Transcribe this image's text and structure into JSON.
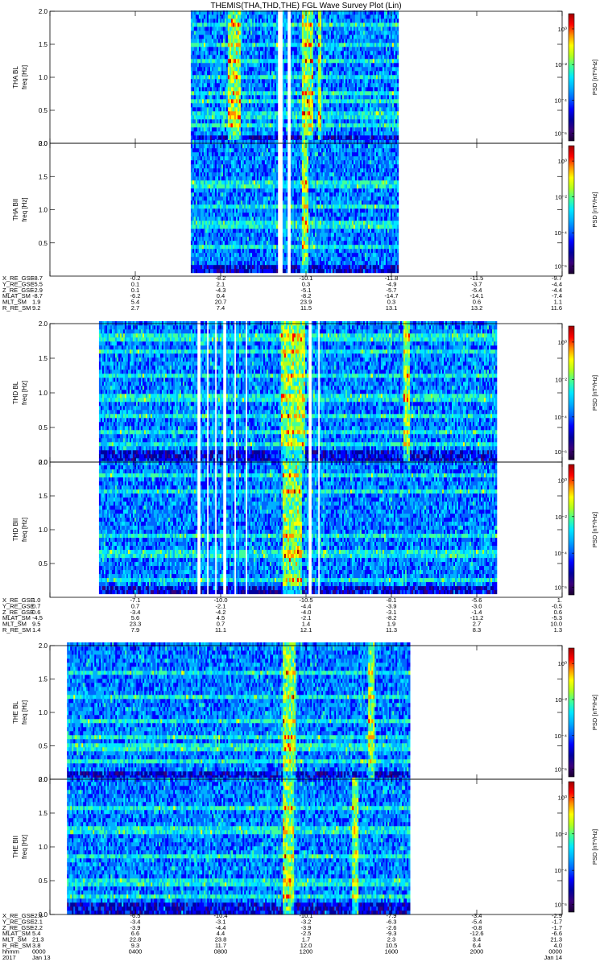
{
  "title": "THEMIS(THA,THD,THE) FGL Wave Survey Plot (Lin)",
  "colors": {
    "palette": [
      "#1a0030",
      "#3a007a",
      "#00009e",
      "#0000ff",
      "#0066ff",
      "#00b0ff",
      "#00e8ff",
      "#40ff9a",
      "#b0ff20",
      "#ffff00",
      "#ff9000",
      "#ff0000",
      "#a00000"
    ],
    "background": "#ffffff"
  },
  "colorbar": {
    "label": "PSD [nT²/Hz]",
    "ticks": [
      "10⁰",
      "10⁻²",
      "10⁻⁴",
      "10⁻⁶"
    ],
    "tick_levels": [
      0.88,
      0.6,
      0.32,
      0.06
    ]
  },
  "ephemeris_groups": [
    {
      "labels": [
        "X_RE_GSE",
        "Y_RE_GSE",
        "Z_RE_GSE",
        "MLAT_SM",
        "MLT_SM",
        "R_RE_SM"
      ],
      "columns": [
        [
          "-8.7",
          "-5.5",
          "-2.9",
          "-8.7",
          "1.9",
          "9.2"
        ],
        [
          "-0.2",
          "0.1",
          "0.1",
          "-6.2",
          "5.4",
          "2.7"
        ],
        [
          "-8.2",
          "2.1",
          "-4.3",
          "0.4",
          "20.7",
          "7.4"
        ],
        [
          "-10.1",
          "0.3",
          "-5.1",
          "-8.2",
          "23.9",
          "11.5"
        ],
        [
          "-11.8",
          "-4.9",
          "-5.7",
          "-14.7",
          "0.3",
          "13.1"
        ],
        [
          "-11.5",
          "-3.7",
          "-5.4",
          "-14.1",
          "0.6",
          "13.2"
        ],
        [
          "-9.7",
          "-4.4",
          "-4.4",
          "-7.4",
          "1.1",
          "11.6"
        ]
      ]
    },
    {
      "labels": [
        "X_RE_GSE",
        "Y_RE_GSE",
        "Z_RE_GSE",
        "MLAT_SM",
        "MLT_SM",
        "R_RE_SM"
      ],
      "columns": [
        [
          "1.0",
          "0.7",
          "0.6",
          "-4.5",
          "9.5",
          "1.4"
        ],
        [
          "-7.1",
          "0.7",
          "-3.4",
          "5.6",
          "23.3",
          "7.9"
        ],
        [
          "-10.0",
          "-2.1",
          "-4.2",
          "4.5",
          "0.7",
          "11.1"
        ],
        [
          "-10.5",
          "-4.4",
          "-4.0",
          "-2.1",
          "1.4",
          "12.1"
        ],
        [
          "-8.1",
          "-3.9",
          "-3.1",
          "-8.2",
          "1.9",
          "11.3"
        ],
        [
          "-5.6",
          "-3.0",
          "-1.4",
          "-11.2",
          "2.7",
          "8.3"
        ],
        [
          "1.",
          "-0.5",
          "0.6",
          "-5.3",
          "10.0",
          "1.3"
        ]
      ]
    },
    {
      "labels": [
        "X_RE_GSE",
        "Y_RE_GSE",
        "Z_RE_GSE",
        "MLAT_SM",
        "MLT_SM",
        "R_RE_SM",
        "hhmm",
        "2017"
      ],
      "columns": [
        [
          "-2.8",
          "-2.1",
          "-2.2",
          "5.4",
          "21.3",
          "3.8",
          "0000",
          "Jan 13"
        ],
        [
          "-6.5",
          "-3.4",
          "-3.9",
          "6.6",
          "22.8",
          "9.3",
          "0400",
          ""
        ],
        [
          "-10.4",
          "-3.1",
          "-4.4",
          "4.4",
          "23.8",
          "11.7",
          "0800",
          ""
        ],
        [
          "-10.1",
          "-3.2",
          "-3.9",
          "-2.5",
          "1.7",
          "12.0",
          "1200",
          ""
        ],
        [
          "-7.9",
          "-6.3",
          "-2.6",
          "-9.3",
          "2.3",
          "10.5",
          "1600",
          ""
        ],
        [
          "-3.4",
          "-5.4",
          "-0.8",
          "-12.6",
          "3.4",
          "6.4",
          "2000",
          ""
        ],
        [
          "-2.9",
          "-1.7",
          "-1.7",
          "-6.6",
          "21.3",
          "4.0",
          "0000",
          "Jan 14"
        ]
      ]
    }
  ],
  "chart_data": [
    {
      "type": "heatmap",
      "id": "tha-bl",
      "ylabel": "THA BL",
      "ylabel2": "freq [Hz]",
      "x_range_hours": [
        0,
        24
      ],
      "ylim": [
        0,
        2
      ],
      "yticks": [
        "0.0",
        "0.5",
        "1.0",
        "1.5",
        "2.0"
      ],
      "z_label": "PSD [nT²/Hz]",
      "data_span_hours": [
        6.6,
        16.3
      ],
      "gaps_hours": [
        [
          10.67,
          10.87
        ],
        [
          11.07,
          11.27
        ]
      ],
      "bright_bands_hz": [
        0.22,
        0.4,
        0.62,
        0.75,
        1.0,
        1.2,
        1.48,
        1.77
      ],
      "bright_times_hours": [
        [
          8.3,
          8.9
        ],
        [
          11.8,
          12.3
        ],
        [
          12.5,
          12.7
        ]
      ]
    },
    {
      "type": "heatmap",
      "id": "tha-bll",
      "ylabel": "THA BII",
      "ylabel2": "freq [Hz]",
      "x_range_hours": [
        0,
        24
      ],
      "ylim": [
        0,
        2
      ],
      "yticks": [
        "0.5",
        "1.0",
        "1.5",
        "2.0"
      ],
      "z_label": "PSD [nT²/Hz]",
      "data_span_hours": [
        6.6,
        16.3
      ],
      "gaps_hours": [
        [
          10.67,
          10.87
        ],
        [
          11.07,
          11.27
        ]
      ],
      "bright_bands_hz": [
        0.4,
        0.75,
        1.0,
        1.35
      ],
      "bright_times_hours": [
        [
          11.8,
          12.1
        ]
      ]
    },
    {
      "type": "heatmap",
      "id": "thd-bl",
      "ylabel": "THD BL",
      "ylabel2": "freq [Hz]",
      "x_range_hours": [
        0,
        24
      ],
      "ylim": [
        0,
        2
      ],
      "yticks": [
        "0.0",
        "0.5",
        "1.0",
        "1.5",
        "2.0"
      ],
      "z_label": "PSD [nT²/Hz]",
      "data_span_hours": [
        2.3,
        20.9
      ],
      "gaps_hours": [
        [
          6.9,
          7.0
        ],
        [
          7.3,
          7.4
        ],
        [
          7.7,
          7.8
        ],
        [
          8.1,
          8.2
        ],
        [
          8.6,
          8.7
        ],
        [
          9.1,
          9.2
        ],
        [
          12.1,
          12.2
        ],
        [
          12.5,
          12.6
        ]
      ],
      "bright_bands_hz": [
        0.22,
        0.4,
        0.62,
        0.9,
        1.22,
        1.55,
        1.77
      ],
      "bright_times_hours": [
        [
          10.8,
          11.9
        ],
        [
          16.5,
          16.8
        ]
      ]
    },
    {
      "type": "heatmap",
      "id": "thd-bll",
      "ylabel": "THD BII",
      "ylabel2": "freq [Hz]",
      "x_range_hours": [
        0,
        24
      ],
      "ylim": [
        0,
        2
      ],
      "yticks": [
        "0.5",
        "1.0",
        "1.5",
        "2.0"
      ],
      "z_label": "PSD [nT²/Hz]",
      "data_span_hours": [
        2.3,
        20.9
      ],
      "gaps_hours": [
        [
          6.9,
          7.0
        ],
        [
          7.3,
          7.4
        ],
        [
          7.7,
          7.8
        ],
        [
          8.1,
          8.2
        ],
        [
          8.6,
          8.7
        ],
        [
          9.1,
          9.2
        ],
        [
          12.1,
          12.2
        ],
        [
          12.5,
          12.6
        ]
      ],
      "bright_bands_hz": [
        0.22,
        0.62,
        0.9,
        1.55,
        1.77
      ],
      "bright_times_hours": [
        [
          10.9,
          11.8
        ]
      ]
    },
    {
      "type": "heatmap",
      "id": "the-bl",
      "ylabel": "THE BL",
      "ylabel2": "freq [Hz]",
      "x_range_hours": [
        0,
        24
      ],
      "ylim": [
        0,
        2
      ],
      "yticks": [
        "0.0",
        "0.5",
        "1.0",
        "1.5",
        "2.0"
      ],
      "z_label": "PSD [nT²/Hz]",
      "data_span_hours": [
        0.8,
        16.8
      ],
      "gaps_hours": [],
      "bright_bands_hz": [
        0.22,
        0.45,
        0.62,
        0.82,
        1.22,
        1.55
      ],
      "bright_times_hours": [
        [
          10.9,
          11.5
        ],
        [
          14.9,
          15.2
        ]
      ]
    },
    {
      "type": "heatmap",
      "id": "the-bll",
      "ylabel": "THE BII",
      "ylabel2": "freq [Hz]",
      "x_range_hours": [
        0,
        24
      ],
      "ylim": [
        0,
        2
      ],
      "yticks": [
        "0.0",
        "0.5",
        "1.0",
        "1.5",
        "2.0"
      ],
      "z_label": "PSD [nT²/Hz]",
      "data_span_hours": [
        0.8,
        16.8
      ],
      "gaps_hours": [],
      "bright_bands_hz": [
        0.22,
        0.45,
        0.82,
        1.22,
        1.55
      ],
      "bright_times_hours": [
        [
          10.9,
          11.4
        ],
        [
          14.1,
          14.4
        ]
      ]
    }
  ]
}
